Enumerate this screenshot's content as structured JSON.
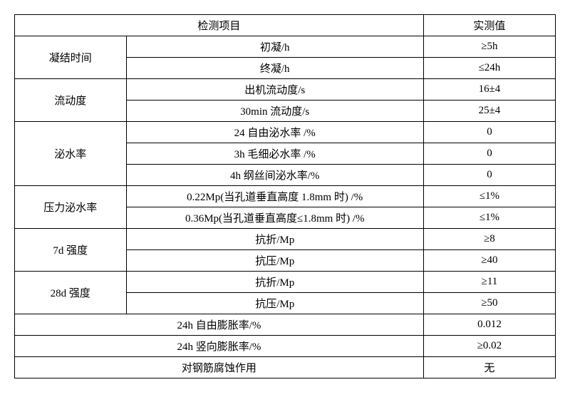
{
  "headers": {
    "item": "检测项目",
    "value": "实测值"
  },
  "groups": [
    {
      "category": "凝结时间",
      "rows": [
        {
          "label": "初凝/h",
          "value": "≥5h"
        },
        {
          "label": "终凝/h",
          "value": "≤24h"
        }
      ]
    },
    {
      "category": "流动度",
      "rows": [
        {
          "label": "出机流动度/s",
          "value": "16±4"
        },
        {
          "label": "30min 流动度/s",
          "value": "25±4"
        }
      ]
    },
    {
      "category": "泌水率",
      "rows": [
        {
          "label": "24 自由泌水率 /%",
          "value": "0"
        },
        {
          "label": "3h 毛细必水率 /%",
          "value": "0"
        },
        {
          "label": "4h 纲丝间泌水率/%",
          "value": "0"
        }
      ]
    },
    {
      "category": "压力泌水率",
      "rows": [
        {
          "label": "0.22Mp(当孔道垂直高度 1.8mm 时) /%",
          "value": "≤1%"
        },
        {
          "label": "0.36Mp(当孔道垂直高度≤1.8mm 时) /%",
          "value": "≤1%"
        }
      ]
    },
    {
      "category": "7d 强度",
      "rows": [
        {
          "label": "抗折/Mp",
          "value": "≥8"
        },
        {
          "label": "抗压/Mp",
          "value": "≥40"
        }
      ]
    },
    {
      "category": "28d 强度",
      "rows": [
        {
          "label": "抗折/Mp",
          "value": "≥11"
        },
        {
          "label": "抗压/Mp",
          "value": "≥50"
        }
      ]
    }
  ],
  "fullrows": [
    {
      "label": "24h 自由膨胀率/%",
      "value": "0.012"
    },
    {
      "label": "24h 竖向膨胀率/%",
      "value": "≥0.02"
    },
    {
      "label": "对钢筋腐蚀作用",
      "value": "无"
    }
  ],
  "style": {
    "border_color": "#000000",
    "background_color": "#ffffff",
    "text_color": "#000000",
    "font_size": 15,
    "font_family": "SimSun"
  }
}
